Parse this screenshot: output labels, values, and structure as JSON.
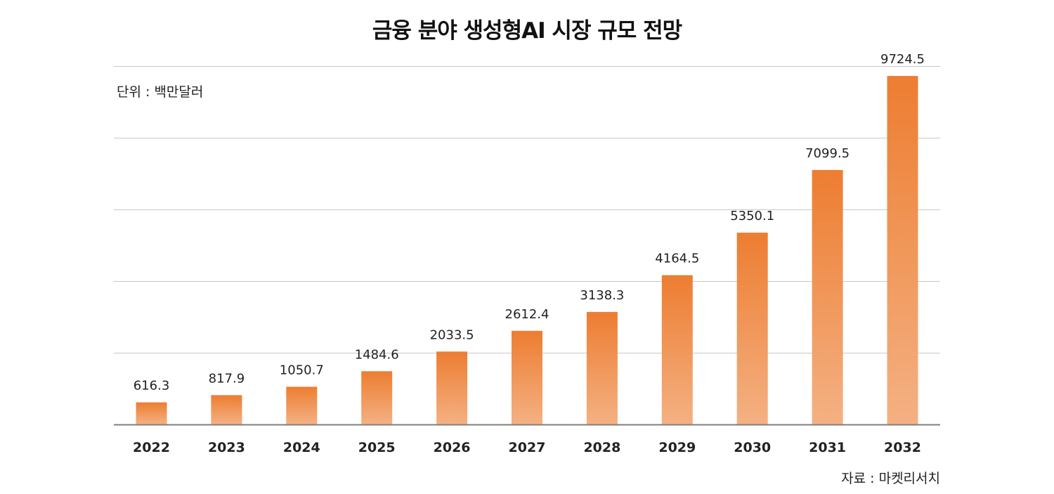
{
  "title": "금융 분야 생성형AI 시장 규모 전망",
  "unit_note": "단위 : 백만달러",
  "source_note": "자료 : 마켓리서치",
  "colors": {
    "bar_top": "#ED7D31",
    "bar_bottom": "#F4B183",
    "grid": "#c8c8c8",
    "axis": "#7f7f7f"
  },
  "chart_data": {
    "type": "bar",
    "title": "금융 분야 생성형AI 시장 규모 전망",
    "xlabel": "",
    "ylabel": "",
    "unit": "백만달러",
    "categories": [
      "2022",
      "2023",
      "2024",
      "2025",
      "2026",
      "2027",
      "2028",
      "2029",
      "2030",
      "2031",
      "2032"
    ],
    "values": [
      616.3,
      817.9,
      1050.7,
      1484.6,
      2033.5,
      2612.4,
      3138.3,
      4164.5,
      5350.1,
      7099.5,
      9724.5
    ],
    "value_labels": [
      "616.3",
      "817.9",
      "1050.7",
      "1484.6",
      "2033.5",
      "2612.4",
      "3138.3",
      "4164.5",
      "5350.1",
      "7099.5",
      "9724.5"
    ],
    "ylim": [
      0,
      10000
    ],
    "grid": true,
    "legend": "none"
  }
}
